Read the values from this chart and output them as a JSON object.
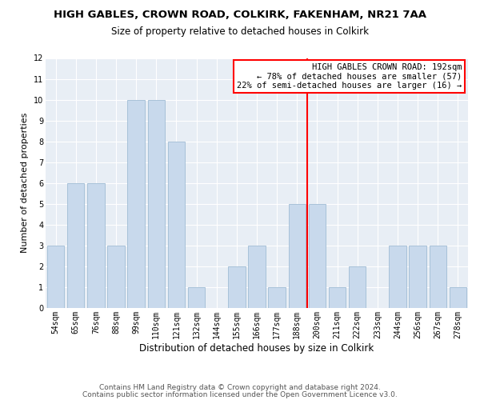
{
  "title": "HIGH GABLES, CROWN ROAD, COLKIRK, FAKENHAM, NR21 7AA",
  "subtitle": "Size of property relative to detached houses in Colkirk",
  "xlabel": "Distribution of detached houses by size in Colkirk",
  "ylabel": "Number of detached properties",
  "bin_labels": [
    "54sqm",
    "65sqm",
    "76sqm",
    "88sqm",
    "99sqm",
    "110sqm",
    "121sqm",
    "132sqm",
    "144sqm",
    "155sqm",
    "166sqm",
    "177sqm",
    "188sqm",
    "200sqm",
    "211sqm",
    "222sqm",
    "233sqm",
    "244sqm",
    "256sqm",
    "267sqm",
    "278sqm"
  ],
  "bar_heights": [
    3,
    6,
    6,
    3,
    10,
    10,
    8,
    1,
    0,
    2,
    3,
    1,
    5,
    5,
    1,
    2,
    0,
    3,
    3,
    3,
    1
  ],
  "bar_color": "#c8d9ec",
  "bar_edgecolor": "#a0bcd4",
  "marker_color": "red",
  "ylim": [
    0,
    12
  ],
  "yticks": [
    0,
    1,
    2,
    3,
    4,
    5,
    6,
    7,
    8,
    9,
    10,
    11,
    12
  ],
  "annotation_title": "HIGH GABLES CROWN ROAD: 192sqm",
  "annotation_line1": "← 78% of detached houses are smaller (57)",
  "annotation_line2": "22% of semi-detached houses are larger (16) →",
  "footer1": "Contains HM Land Registry data © Crown copyright and database right 2024.",
  "footer2": "Contains public sector information licensed under the Open Government Licence v3.0.",
  "title_fontsize": 9.5,
  "subtitle_fontsize": 8.5,
  "xlabel_fontsize": 8.5,
  "ylabel_fontsize": 8,
  "tick_fontsize": 7,
  "annotation_fontsize": 7.5,
  "footer_fontsize": 6.5,
  "bg_color": "#e8eef5",
  "grid_color": "#ffffff"
}
